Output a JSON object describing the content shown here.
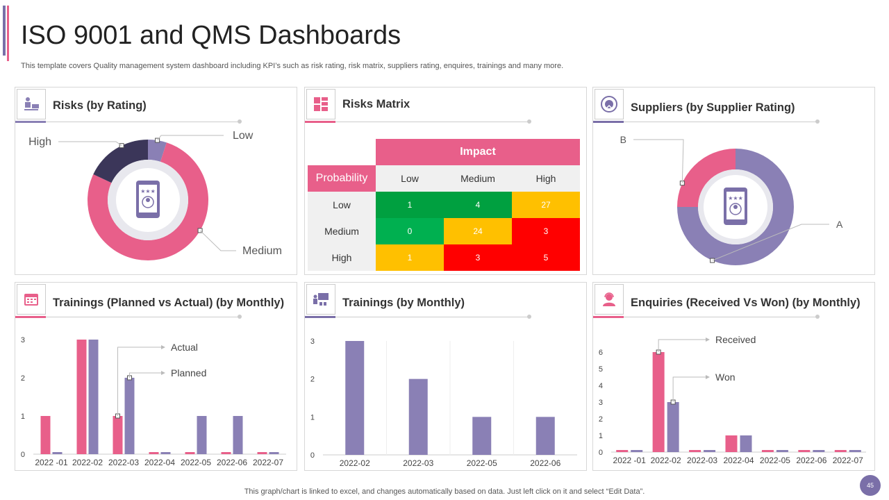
{
  "header": {
    "title": "ISO 9001 and QMS Dashboards",
    "subtitle": "This template covers Quality management system dashboard including KPI’s such as risk rating, risk matrix, suppliers rating, enquires, trainings and many more."
  },
  "footer": {
    "note": "This graph/chart is linked to excel, and changes automatically based on data. Just left click on it and select “Edit Data”.",
    "page_number": "45"
  },
  "colors": {
    "pink": "#e85f8a",
    "purple": "#8a80b5",
    "navy": "#3b3659",
    "green_dark": "#00a040",
    "green": "#00b050",
    "amber": "#ffc000",
    "red": "#ff0000"
  },
  "panels": {
    "risks_rating": {
      "title": "Risks (by Rating)",
      "icon": "worker-icon"
    },
    "risks_matrix": {
      "title": "Risks  Matrix",
      "icon": "grid-icon"
    },
    "suppliers": {
      "title": "Suppliers (by Supplier Rating)",
      "icon": "seal-icon"
    },
    "trainings_pva": {
      "title": "Trainings (Planned vs Actual) (by Monthly)",
      "icon": "calendar-icon"
    },
    "trainings_monthly": {
      "title": "Trainings (by Monthly)",
      "icon": "presentation-icon"
    },
    "enquiries": {
      "title": "Enquiries (Received Vs Won) (by Monthly)",
      "icon": "support-agent-icon"
    }
  },
  "matrix": {
    "impact_label": "Impact",
    "probability_label": "Probability",
    "impact_levels": [
      "Low",
      "Medium",
      "High"
    ],
    "rows": [
      {
        "label": "Low",
        "cells": [
          {
            "value": "1",
            "color": "#00a040"
          },
          {
            "value": "4",
            "color": "#00a040"
          },
          {
            "value": "27",
            "color": "#ffc000"
          }
        ]
      },
      {
        "label": "Medium",
        "cells": [
          {
            "value": "0",
            "color": "#00b050"
          },
          {
            "value": "24",
            "color": "#ffc000"
          },
          {
            "value": "3",
            "color": "#ff0000"
          }
        ]
      },
      {
        "label": "High",
        "cells": [
          {
            "value": "1",
            "color": "#ffc000"
          },
          {
            "value": "3",
            "color": "#ff0000"
          },
          {
            "value": "5",
            "color": "#ff0000"
          }
        ]
      }
    ]
  },
  "chart_data": [
    {
      "id": "risks_by_rating",
      "type": "pie",
      "title": "Risks (by Rating)",
      "slices": [
        {
          "label": "Low",
          "value": 5,
          "color": "#8a80b5"
        },
        {
          "label": "Medium",
          "value": 77,
          "color": "#e85f8a"
        },
        {
          "label": "High",
          "value": 18,
          "color": "#3b3659"
        }
      ]
    },
    {
      "id": "suppliers_by_rating",
      "type": "pie",
      "title": "Suppliers (by Supplier Rating)",
      "slices": [
        {
          "label": "A",
          "value": 75,
          "color": "#8a80b5"
        },
        {
          "label": "B",
          "value": 25,
          "color": "#e85f8a"
        }
      ]
    },
    {
      "id": "trainings_planned_actual",
      "type": "bar",
      "title": "Trainings (Planned vs Actual) (by Monthly)",
      "categories": [
        "2022 -01",
        "2022-02",
        "2022-03",
        "2022-04",
        "2022-05",
        "2022-06",
        "2022-07"
      ],
      "series": [
        {
          "name": "Actual",
          "color": "#e85f8a",
          "values": [
            1,
            3,
            1,
            0,
            0,
            0,
            0
          ]
        },
        {
          "name": "Planned",
          "color": "#8a80b5",
          "values": [
            0,
            3,
            2,
            0,
            1,
            1,
            0
          ]
        }
      ],
      "yticks": [
        "0",
        "1",
        "2",
        "3"
      ],
      "ylim": [
        0,
        3
      ]
    },
    {
      "id": "trainings_monthly",
      "type": "bar",
      "title": "Trainings (by Monthly)",
      "categories": [
        "2022-02",
        "2022-03",
        "2022-05",
        "2022-06"
      ],
      "series": [
        {
          "name": "Trainings",
          "color": "#8a80b5",
          "values": [
            3,
            2,
            1,
            1
          ]
        }
      ],
      "yticks": [
        "0",
        "1",
        "2",
        "3"
      ],
      "ylim": [
        0,
        3
      ]
    },
    {
      "id": "enquiries_received_won",
      "type": "bar",
      "title": "Enquiries (Received Vs Won) (by Monthly)",
      "categories": [
        "2022 -01",
        "2022-02",
        "2022-03",
        "2022-04",
        "2022-05",
        "2022-06",
        "2022-07"
      ],
      "series": [
        {
          "name": "Received",
          "color": "#e85f8a",
          "values": [
            0,
            6,
            0,
            1,
            0,
            0,
            0
          ]
        },
        {
          "name": "Won",
          "color": "#8a80b5",
          "values": [
            0,
            3,
            0,
            1,
            0,
            0,
            0
          ]
        }
      ],
      "yticks": [
        "0",
        "1",
        "2",
        "3",
        "4",
        "5",
        "6"
      ],
      "ylim": [
        0,
        6
      ]
    }
  ]
}
